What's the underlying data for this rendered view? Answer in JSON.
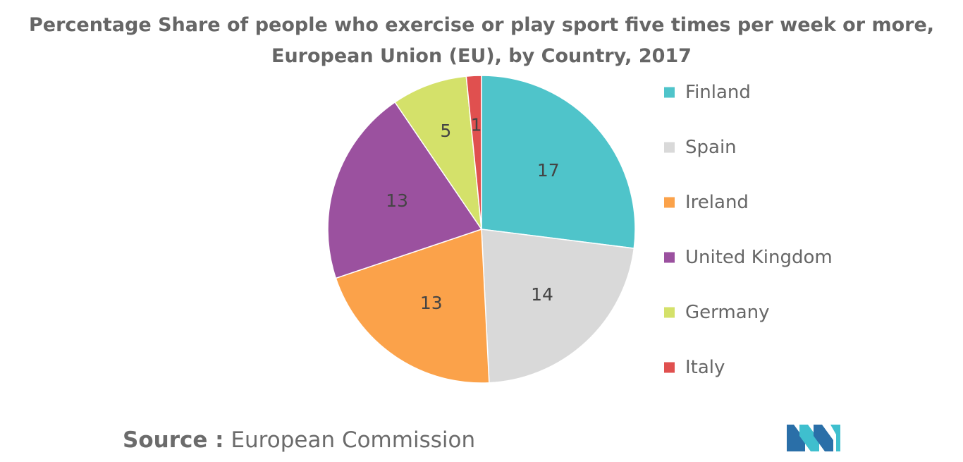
{
  "title": {
    "line1": "Percentage Share of people who exercise or play sport five times per week or more,",
    "line2": "European Union (EU), by Country, 2017"
  },
  "source": {
    "label": "Source :",
    "text": "European Commission"
  },
  "chart_data": {
    "type": "pie",
    "title": "Percentage Share of people who exercise or play sport five times per week or more, European Union (EU), by Country, 2017",
    "categories": [
      "Finland",
      "Spain",
      "Ireland",
      "United Kingdom",
      "Germany",
      "Italy"
    ],
    "values": [
      17,
      14,
      13,
      13,
      5,
      1
    ],
    "colors": [
      "#4fc4ca",
      "#d9d9d9",
      "#fba24a",
      "#9b519f",
      "#d4e16a",
      "#e0504f"
    ],
    "legend_position": "right",
    "start_angle_deg": 0,
    "direction": "clockwise"
  },
  "logo": {
    "icon": "mordor-intelligence-logo-icon",
    "colors": [
      "#2a6fa8",
      "#3fbfce"
    ]
  }
}
